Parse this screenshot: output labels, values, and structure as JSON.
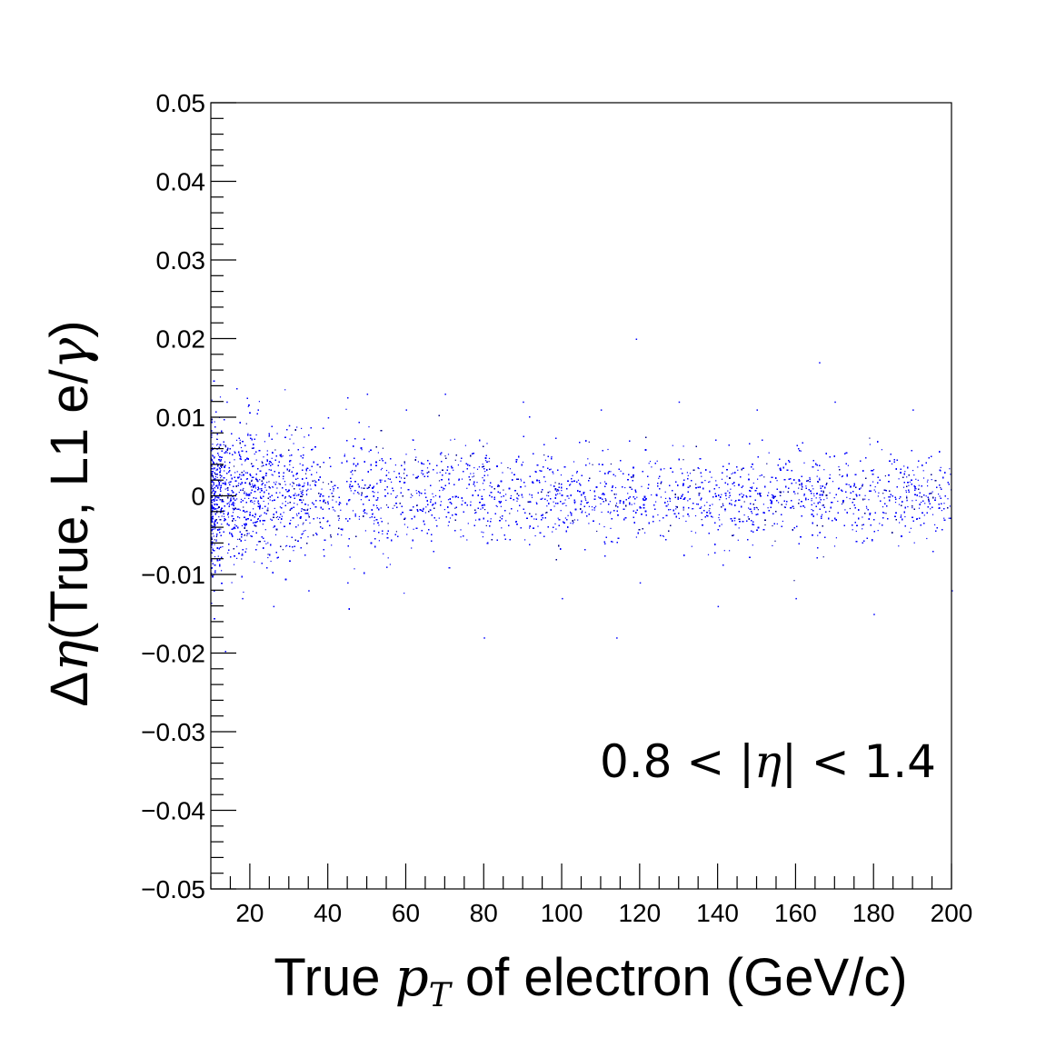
{
  "chart_data": {
    "type": "scatter",
    "title": "",
    "xlabel": {
      "prefix": "True ",
      "math": "p",
      "sub": "T",
      "suffix": " of electron (GeV/c)"
    },
    "ylabel": {
      "prefix": "Δ",
      "math": "η",
      "suffix": "(True, L1 e/",
      "math2": "γ",
      "end": ")"
    },
    "xlim": [
      10,
      200
    ],
    "ylim": [
      -0.05,
      0.05
    ],
    "x_ticks": [
      20,
      40,
      60,
      80,
      100,
      120,
      140,
      160,
      180,
      200
    ],
    "x_tick_labels": [
      "20",
      "40",
      "60",
      "80",
      "100",
      "120",
      "140",
      "160",
      "180",
      "200"
    ],
    "y_ticks": [
      0.05,
      0.04,
      0.03,
      0.02,
      0.01,
      0,
      -0.01,
      -0.02,
      -0.03,
      -0.04,
      -0.05
    ],
    "y_tick_labels": [
      "0.05",
      "0.04",
      "0.03",
      "0.02",
      "0.01",
      "0",
      "−0.01",
      "−0.02",
      "−0.03",
      "−0.04",
      "−0.05"
    ],
    "annotation": {
      "left": "0.8 < |",
      "math": "η",
      "right": "| < 1.4"
    },
    "marker_color": "#0000ff",
    "dense_color": "#00008b",
    "grid": false,
    "series": [
      {
        "distribution": {
          "center": 0.0,
          "spread_at_x": [
            [
              10,
              0.0045
            ],
            [
              30,
              0.0038
            ],
            [
              60,
              0.0032
            ],
            [
              100,
              0.0028
            ],
            [
              150,
              0.0026
            ],
            [
              200,
              0.0025
            ]
          ],
          "density_falloff": "decreasing with x"
        },
        "points": [
          [
            14,
            0.012
          ],
          [
            18,
            -0.013
          ],
          [
            22,
            0.011
          ],
          [
            26,
            -0.014
          ],
          [
            30,
            0.009
          ],
          [
            35,
            -0.012
          ],
          [
            40,
            0.01
          ],
          [
            45,
            -0.011
          ],
          [
            50,
            0.013
          ],
          [
            55,
            -0.009
          ],
          [
            60,
            0.011
          ],
          [
            70,
            0.013
          ],
          [
            80,
            -0.018
          ],
          [
            90,
            0.012
          ],
          [
            100,
            -0.013
          ],
          [
            110,
            0.011
          ],
          [
            114,
            -0.018
          ],
          [
            119,
            0.02
          ],
          [
            120,
            -0.011
          ],
          [
            130,
            0.012
          ],
          [
            140,
            -0.014
          ],
          [
            150,
            0.011
          ],
          [
            160,
            -0.013
          ],
          [
            166,
            0.017
          ],
          [
            170,
            0.012
          ],
          [
            180,
            -0.015
          ],
          [
            190,
            0.011
          ],
          [
            200,
            -0.012
          ]
        ]
      }
    ]
  }
}
